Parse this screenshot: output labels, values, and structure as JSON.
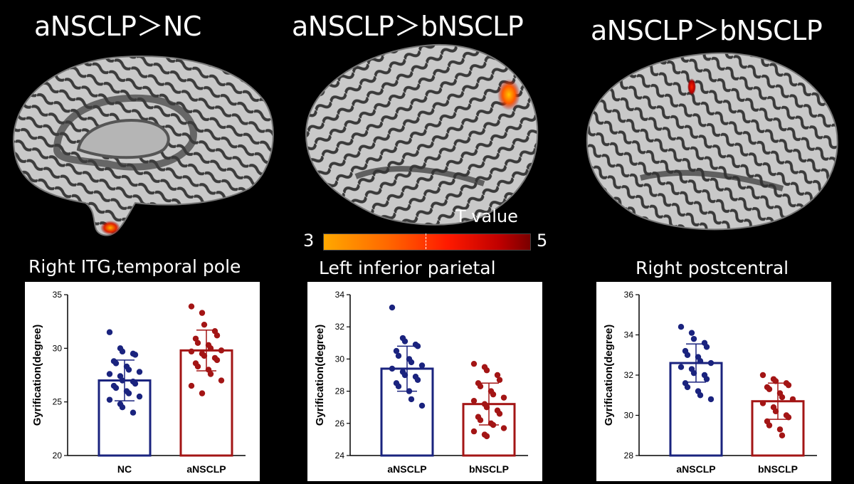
{
  "panels": [
    {
      "title": "aNSCLP＞NC",
      "region": "Right ITG,temporal pole",
      "view": "medial",
      "activation": "temporal-pole"
    },
    {
      "title": "aNSCLP＞bNSCLP",
      "region": "Left inferior parietal",
      "view": "lateral-left",
      "activation": "inferior-parietal"
    },
    {
      "title": "aNSCLP＞bNSCLP",
      "region": "Right postcentral",
      "view": "lateral-right",
      "activation": "postcentral"
    }
  ],
  "colorbar": {
    "title": "T value",
    "min_label": "3",
    "max_label": "5",
    "colors": [
      "#ffa800",
      "#ff1a00",
      "#7a0000"
    ]
  },
  "chart_data": [
    {
      "type": "bar",
      "categories": [
        "NC",
        "aNSCLP"
      ],
      "ylabel": "Gyrification(degree)",
      "ylim": [
        20,
        35
      ],
      "yticks": [
        20,
        25,
        30,
        35
      ],
      "means": [
        27.0,
        29.8
      ],
      "sd": [
        1.9,
        1.9
      ],
      "colors": [
        "#1a237e",
        "#a31515"
      ],
      "points": [
        [
          31.5,
          30.0,
          29.7,
          29.5,
          29.4,
          28.8,
          28.6,
          28.3,
          28.0,
          27.8,
          27.6,
          27.4,
          27.0,
          26.9,
          26.7,
          26.5,
          26.3,
          26.0,
          25.8,
          25.5,
          25.2,
          24.8,
          24.5,
          24.0
        ],
        [
          33.9,
          33.3,
          32.2,
          31.6,
          31.2,
          30.9,
          30.5,
          30.3,
          30.0,
          29.8,
          29.7,
          29.5,
          29.3,
          29.1,
          28.9,
          28.6,
          28.3,
          28.0,
          27.6,
          27.0,
          26.5,
          25.8
        ]
      ]
    },
    {
      "type": "bar",
      "categories": [
        "aNSCLP",
        "bNSCLP"
      ],
      "ylabel": "Gyrification(degree)",
      "ylim": [
        24,
        34
      ],
      "yticks": [
        24,
        26,
        28,
        30,
        32,
        34
      ],
      "means": [
        29.4,
        27.2
      ],
      "sd": [
        1.4,
        1.3
      ],
      "colors": [
        "#1a237e",
        "#a31515"
      ],
      "points": [
        [
          33.2,
          31.3,
          31.1,
          30.9,
          30.8,
          30.5,
          30.2,
          30.0,
          29.8,
          29.6,
          29.4,
          29.2,
          29.0,
          28.9,
          28.7,
          28.5,
          28.3,
          28.0,
          27.5,
          27.1
        ],
        [
          29.7,
          29.5,
          29.3,
          29.0,
          28.7,
          28.5,
          28.3,
          28.0,
          27.8,
          27.6,
          27.4,
          27.2,
          27.0,
          26.8,
          26.6,
          26.4,
          26.2,
          26.0,
          25.9,
          25.7,
          25.5,
          25.3,
          25.2
        ]
      ]
    },
    {
      "type": "bar",
      "categories": [
        "aNSCLP",
        "bNSCLP"
      ],
      "ylabel": "Gyrification(degree)",
      "ylim": [
        28,
        36
      ],
      "yticks": [
        28,
        30,
        32,
        34,
        36
      ],
      "means": [
        32.6,
        30.7
      ],
      "sd": [
        0.95,
        0.9
      ],
      "colors": [
        "#1a237e",
        "#a31515"
      ],
      "points": [
        [
          34.4,
          34.1,
          33.8,
          33.6,
          33.4,
          33.2,
          33.0,
          32.9,
          32.7,
          32.6,
          32.4,
          32.3,
          32.1,
          32.0,
          31.8,
          31.6,
          31.4,
          31.2,
          31.0,
          30.8
        ],
        [
          32.0,
          31.8,
          31.7,
          31.6,
          31.5,
          31.4,
          31.3,
          31.1,
          30.9,
          30.8,
          30.6,
          30.4,
          30.2,
          30.0,
          29.9,
          29.7,
          29.5,
          29.3,
          29.0
        ]
      ]
    }
  ]
}
